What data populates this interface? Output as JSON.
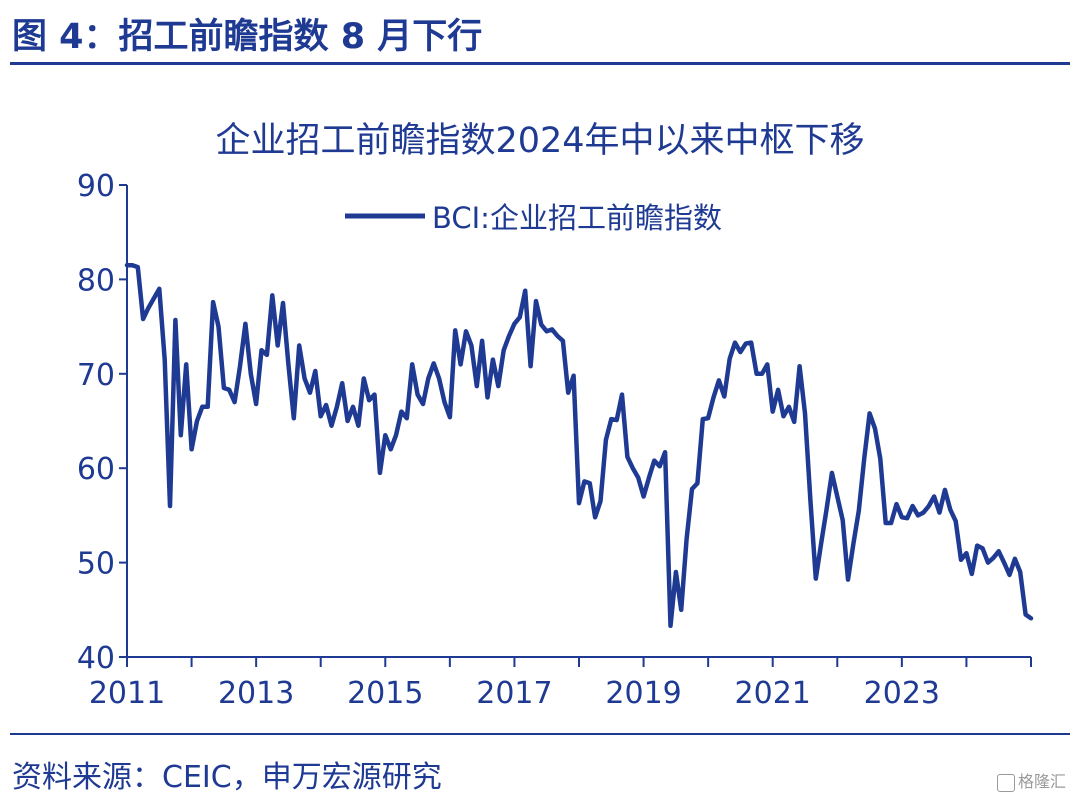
{
  "header": {
    "title": "图 4：招工前瞻指数 8 月下行"
  },
  "footer": {
    "source": "资料来源：CEIC，申万宏源研究",
    "watermark": "格隆汇"
  },
  "colors": {
    "line": "#1f3a93",
    "axis": "#1f3a93",
    "text": "#1f3a93"
  },
  "chart_data": {
    "type": "line",
    "title": "企业招工前瞻指数2024年中以来中枢下移",
    "legend_position": "top-center",
    "grid": false,
    "ylim": [
      40,
      90
    ],
    "yticks": [
      "90",
      "80",
      "70",
      "60",
      "50",
      "40"
    ],
    "xlim": [
      "2011-01",
      "2025-01"
    ],
    "xticks": [
      "2011",
      "2013",
      "2015",
      "2017",
      "2019",
      "2021",
      "2023"
    ],
    "series": [
      {
        "name": "BCI:企业招工前瞻指数",
        "x": [
          "2011-01",
          "2011-02",
          "2011-03",
          "2011-04",
          "2011-05",
          "2011-06",
          "2011-07",
          "2011-08",
          "2011-09",
          "2011-10",
          "2011-11",
          "2011-12",
          "2012-01",
          "2012-02",
          "2012-03",
          "2012-04",
          "2012-05",
          "2012-06",
          "2012-07",
          "2012-08",
          "2012-09",
          "2012-10",
          "2012-11",
          "2012-12",
          "2013-01",
          "2013-02",
          "2013-03",
          "2013-04",
          "2013-05",
          "2013-06",
          "2013-07",
          "2013-08",
          "2013-09",
          "2013-10",
          "2013-11",
          "2013-12",
          "2014-01",
          "2014-02",
          "2014-03",
          "2014-04",
          "2014-05",
          "2014-06",
          "2014-07",
          "2014-08",
          "2014-09",
          "2014-10",
          "2014-11",
          "2014-12",
          "2015-01",
          "2015-02",
          "2015-03",
          "2015-04",
          "2015-05",
          "2015-06",
          "2015-07",
          "2015-08",
          "2015-09",
          "2015-10",
          "2015-11",
          "2015-12",
          "2016-01",
          "2016-02",
          "2016-03",
          "2016-04",
          "2016-05",
          "2016-06",
          "2016-07",
          "2016-08",
          "2016-09",
          "2016-10",
          "2016-11",
          "2016-12",
          "2017-01",
          "2017-02",
          "2017-03",
          "2017-04",
          "2017-05",
          "2017-06",
          "2017-07",
          "2017-08",
          "2017-09",
          "2017-10",
          "2017-11",
          "2017-12",
          "2018-01",
          "2018-02",
          "2018-03",
          "2018-04",
          "2018-05",
          "2018-06",
          "2018-07",
          "2018-08",
          "2018-09",
          "2018-10",
          "2018-11",
          "2018-12",
          "2019-01",
          "2019-02",
          "2019-03",
          "2019-04",
          "2019-05",
          "2019-06",
          "2019-07",
          "2019-08",
          "2019-09",
          "2019-10",
          "2019-11",
          "2019-12",
          "2020-01",
          "2020-02",
          "2020-03",
          "2020-04",
          "2020-05",
          "2020-06",
          "2020-07",
          "2020-08",
          "2020-09",
          "2020-10",
          "2020-11",
          "2020-12",
          "2021-01",
          "2021-02",
          "2021-03",
          "2021-04",
          "2021-05",
          "2021-06",
          "2021-07",
          "2021-08",
          "2021-09",
          "2021-10",
          "2021-11",
          "2021-12",
          "2022-01",
          "2022-02",
          "2022-03",
          "2022-04",
          "2022-05",
          "2022-06",
          "2022-07",
          "2022-08",
          "2022-09",
          "2022-10",
          "2022-11",
          "2022-12",
          "2023-01",
          "2023-02",
          "2023-03",
          "2023-04",
          "2023-05",
          "2023-06",
          "2023-07",
          "2023-08",
          "2023-09",
          "2023-10",
          "2023-11",
          "2023-12",
          "2024-01",
          "2024-02",
          "2024-03",
          "2024-04",
          "2024-05",
          "2024-06",
          "2024-07",
          "2024-08",
          "2024-09",
          "2024-10",
          "2024-11",
          "2024-12"
        ],
        "values": [
          81.5,
          81.5,
          81.3,
          75.8,
          77.0,
          78.0,
          79.0,
          71.5,
          56.0,
          75.7,
          63.5,
          71.0,
          62.0,
          65.0,
          66.5,
          66.5,
          77.6,
          75.0,
          68.5,
          68.3,
          67.0,
          70.8,
          75.3,
          70.0,
          66.8,
          72.5,
          72.0,
          78.3,
          73.0,
          77.5,
          71.0,
          65.3,
          73.0,
          69.5,
          68.0,
          70.3,
          65.5,
          66.7,
          64.5,
          66.5,
          69.0,
          65.0,
          66.5,
          64.5,
          69.5,
          67.2,
          67.8,
          59.5,
          63.5,
          62.0,
          63.5,
          66.0,
          65.3,
          71.0,
          67.8,
          66.8,
          69.5,
          71.1,
          69.5,
          67.0,
          65.4,
          74.6,
          71.0,
          74.5,
          73.0,
          68.7,
          73.5,
          67.5,
          71.5,
          68.7,
          72.5,
          74.0,
          75.3,
          76.0,
          78.8,
          70.8,
          77.7,
          75.2,
          74.5,
          74.7,
          74.0,
          73.5,
          68.0,
          69.8,
          56.3,
          58.6,
          58.4,
          54.8,
          56.5,
          63.0,
          65.2,
          65.1,
          67.8,
          61.2,
          60.0,
          59.0,
          57.0,
          59.0,
          60.8,
          60.2,
          61.7,
          43.3,
          49.0,
          45.0,
          52.5,
          57.8,
          58.4,
          65.2,
          65.3,
          67.5,
          69.3,
          67.6,
          71.6,
          73.3,
          72.3,
          73.2,
          73.3,
          70.0,
          70.0,
          71.0,
          66.0,
          68.3,
          65.5,
          66.5,
          64.9,
          70.8,
          65.8,
          56.6,
          48.3,
          52.0,
          55.6,
          59.5,
          57.0,
          54.5,
          48.2,
          52.0,
          55.5,
          61.0,
          65.8,
          64.2,
          61.0,
          54.2,
          54.2,
          56.2,
          54.8,
          54.7,
          56.0,
          55.0,
          55.3,
          56.0,
          57.0,
          55.3,
          57.7,
          55.6,
          54.4,
          50.3,
          51.0,
          48.8,
          51.8,
          51.5,
          50.0,
          50.5,
          51.2,
          50.0,
          48.7,
          50.4,
          49.0,
          44.5
        ]
      }
    ],
    "last_point": {
      "x": "2025-01",
      "y": 44.1
    }
  }
}
